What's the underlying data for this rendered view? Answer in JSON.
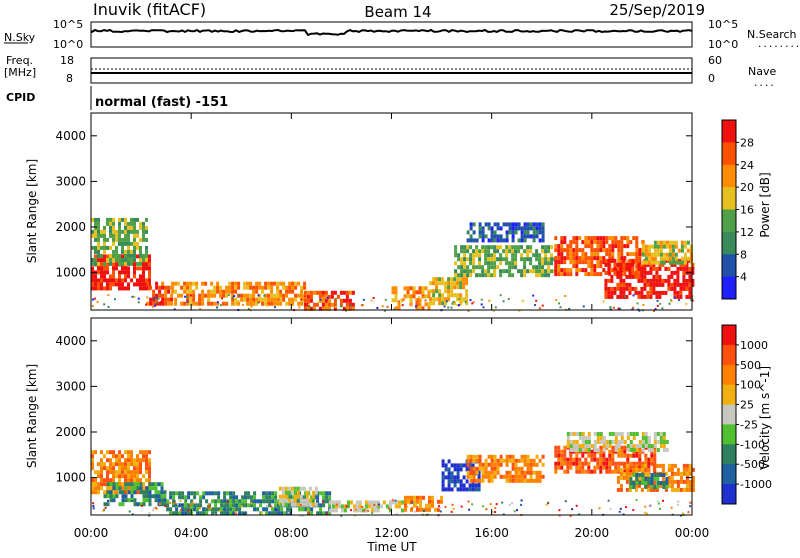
{
  "header": {
    "station": "Inuvik (fitACF)",
    "beam": "Beam 14",
    "date": "25/Sep/2019"
  },
  "panels": {
    "nsky": {
      "label": "N.Sky",
      "left_ticks": [
        "10^5",
        "10^0"
      ],
      "right_label": "N.Search",
      "right_ticks": [
        "10^5",
        "10^0"
      ],
      "right_dots": "........"
    },
    "freq": {
      "label_line1": "Freq.",
      "label_line2": "[MHz]",
      "left_ticks": [
        "18",
        "8"
      ],
      "right_label": "Nave",
      "right_ticks": [
        "60",
        "0"
      ],
      "right_dots": "...."
    },
    "cpid": {
      "label": "CPID",
      "value": "normal (fast) -151"
    }
  },
  "chart_data": [
    {
      "type": "heatmap",
      "name": "power",
      "ylabel": "Slant Range [km]",
      "xlabel": "Time UT",
      "xlim_hours": [
        0,
        24
      ],
      "ylim": [
        180,
        4500
      ],
      "xticks": [
        "00:00",
        "04:00",
        "08:00",
        "12:00",
        "16:00",
        "20:00",
        "00:00"
      ],
      "yticks": [
        1000,
        2000,
        3000,
        4000
      ],
      "colorbar": {
        "label": "Power [dB]",
        "ticks": [
          "4",
          "8",
          "12",
          "16",
          "20",
          "24",
          "28"
        ],
        "colors": [
          "#1f1fff",
          "#2050a8",
          "#3a8a5a",
          "#4fa048",
          "#e6c020",
          "#ff8c00",
          "#ff5000",
          "#f01010"
        ]
      },
      "regions": [
        {
          "start": 0.0,
          "end": 2.3,
          "low": 650,
          "high": 1400,
          "level": 7
        },
        {
          "start": 0.0,
          "end": 2.2,
          "low": 1200,
          "high": 2200,
          "level": 3
        },
        {
          "start": 2.2,
          "end": 3.2,
          "low": 300,
          "high": 800,
          "level": 6
        },
        {
          "start": 3.2,
          "end": 8.5,
          "low": 350,
          "high": 800,
          "level": 5
        },
        {
          "start": 8.5,
          "end": 10.5,
          "low": 200,
          "high": 600,
          "level": 6
        },
        {
          "start": 12.0,
          "end": 13.5,
          "low": 250,
          "high": 700,
          "level": 5
        },
        {
          "start": 13.5,
          "end": 15.0,
          "low": 300,
          "high": 900,
          "level": 4
        },
        {
          "start": 14.5,
          "end": 18.5,
          "low": 900,
          "high": 1600,
          "level": 3
        },
        {
          "start": 15.0,
          "end": 18.0,
          "low": 1700,
          "high": 2100,
          "level": 1
        },
        {
          "start": 18.5,
          "end": 22.0,
          "low": 1000,
          "high": 1800,
          "level": 6
        },
        {
          "start": 20.5,
          "end": 24.0,
          "low": 500,
          "high": 1300,
          "level": 7
        },
        {
          "start": 22.0,
          "end": 24.0,
          "low": 1200,
          "high": 1700,
          "level": 4
        }
      ]
    },
    {
      "type": "heatmap",
      "name": "velocity",
      "ylabel": "Slant Range [km]",
      "xlabel": "Time UT",
      "xlim_hours": [
        0,
        24
      ],
      "ylim": [
        180,
        4500
      ],
      "xticks": [
        "00:00",
        "04:00",
        "08:00",
        "12:00",
        "16:00",
        "20:00",
        "00:00"
      ],
      "yticks": [
        1000,
        2000,
        3000,
        4000
      ],
      "colorbar": {
        "label": "Velocity [m s^-1]",
        "ticks": [
          "1000",
          "500",
          "100",
          "25",
          "-25",
          "-100",
          "-500",
          "-1000"
        ],
        "colors": [
          "#1f2fd0",
          "#2060a0",
          "#2f8060",
          "#50c030",
          "#c8c8c0",
          "#f0b010",
          "#ff8000",
          "#ff5010",
          "#f01010"
        ]
      },
      "regions": [
        {
          "start": 0.0,
          "end": 2.3,
          "low": 650,
          "high": 1600,
          "level": 6
        },
        {
          "start": 0.5,
          "end": 3.0,
          "low": 400,
          "high": 900,
          "level": 2
        },
        {
          "start": 3.0,
          "end": 9.5,
          "low": 250,
          "high": 700,
          "level": 2
        },
        {
          "start": 7.5,
          "end": 9.0,
          "low": 400,
          "high": 800,
          "level": 4
        },
        {
          "start": 9.5,
          "end": 12.5,
          "low": 250,
          "high": 500,
          "level": 4
        },
        {
          "start": 12.5,
          "end": 14.0,
          "low": 250,
          "high": 600,
          "level": 6
        },
        {
          "start": 14.0,
          "end": 15.5,
          "low": 700,
          "high": 1400,
          "level": 0
        },
        {
          "start": 15.0,
          "end": 18.0,
          "low": 900,
          "high": 1500,
          "level": 6
        },
        {
          "start": 18.5,
          "end": 22.5,
          "low": 1100,
          "high": 1700,
          "level": 7
        },
        {
          "start": 19.0,
          "end": 23.0,
          "low": 1600,
          "high": 2000,
          "level": 4
        },
        {
          "start": 21.0,
          "end": 24.0,
          "low": 700,
          "high": 1300,
          "level": 6
        },
        {
          "start": 21.5,
          "end": 23.0,
          "low": 800,
          "high": 1100,
          "level": 2
        }
      ]
    }
  ]
}
